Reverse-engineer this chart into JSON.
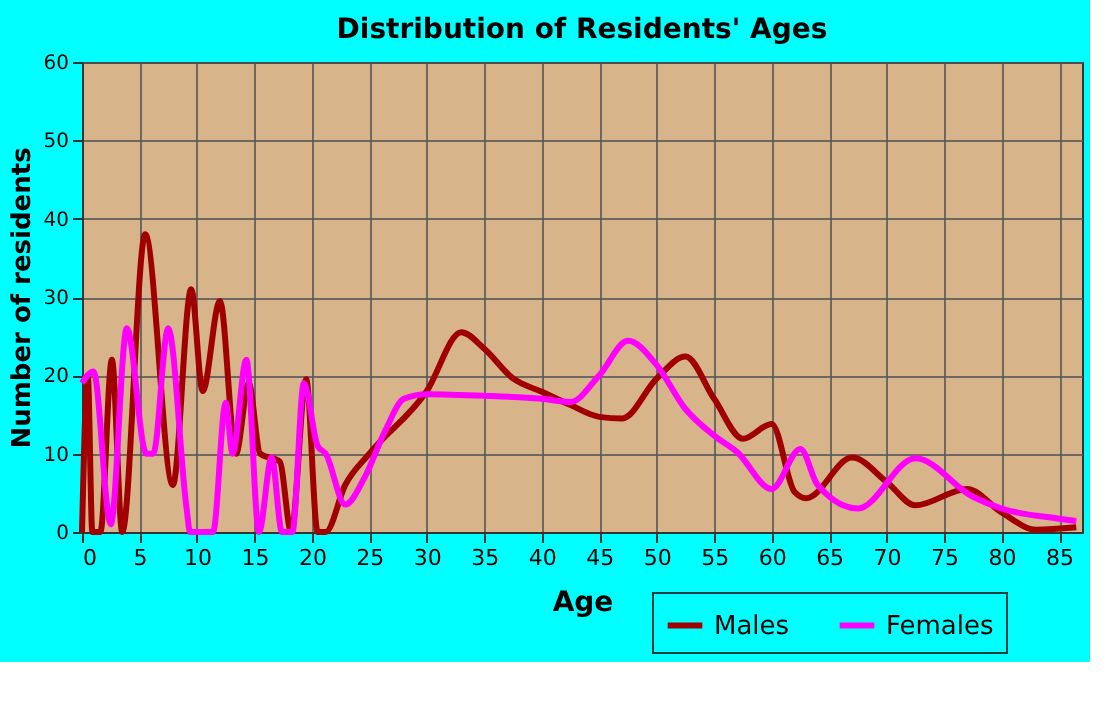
{
  "chart_data": {
    "type": "line",
    "title": "Distribution of Residents' Ages",
    "xlabel": "Age",
    "ylabel": "Number of residents",
    "xlim": [
      0,
      87
    ],
    "xticks": [
      0,
      5,
      10,
      15,
      20,
      25,
      30,
      35,
      40,
      45,
      50,
      55,
      60,
      65,
      70,
      75,
      80,
      85
    ],
    "ylim": [
      0,
      60
    ],
    "yticks": [
      0,
      10,
      20,
      30,
      40,
      50,
      60
    ],
    "grid": true,
    "legend": "bottom right",
    "line_style": "solid",
    "marker": "none",
    "series": [
      {
        "name": "Males",
        "color": "#a00000",
        "x": [
          0,
          0.5,
          0.9,
          1.6,
          2.6,
          3.5,
          5.5,
          7.9,
          9.5,
          10.5,
          12,
          13.4,
          14.5,
          15.5,
          17.2,
          18.2,
          19.5,
          20.5,
          21.2,
          22.9,
          25,
          30,
          33,
          35,
          37.5,
          40,
          42.5,
          45,
          47,
          50,
          52.5,
          55,
          57.5,
          60,
          62,
          63,
          67,
          70,
          72.5,
          77,
          80,
          83,
          86.5
        ],
        "values": [
          0,
          20,
          0,
          0,
          22,
          0,
          38,
          6,
          31,
          18,
          29.5,
          10,
          19,
          10,
          9,
          0,
          19.5,
          0,
          0,
          6,
          10,
          18,
          25.5,
          23.4,
          19.6,
          17.9,
          16.2,
          14.7,
          14.5,
          19.6,
          22.4,
          17,
          11.9,
          13.8,
          5.1,
          4.3,
          9.5,
          6.4,
          3.4,
          5.5,
          2.5,
          0.3,
          0.6
        ]
      },
      {
        "name": "Females",
        "color": "#ff00ff",
        "x": [
          0,
          1,
          2.5,
          3.9,
          5.6,
          6.2,
          7.5,
          9.1,
          9.4,
          11.4,
          12.5,
          13.1,
          14.3,
          15.4,
          16.5,
          17.4,
          18.3,
          19.3,
          20.5,
          21.2,
          22.9,
          24.6,
          26.4,
          28,
          30,
          35,
          40,
          42.5,
          45,
          47.5,
          50,
          52.5,
          55,
          57,
          60,
          62.5,
          64,
          67.5,
          72.5,
          77.5,
          80,
          85,
          86.5
        ],
        "values": [
          19,
          20.5,
          1,
          26,
          10,
          10,
          26,
          3,
          0,
          0,
          16.5,
          10,
          22,
          0,
          9.5,
          0,
          0,
          19,
          11,
          10,
          3.5,
          7,
          13,
          17,
          17.6,
          17.4,
          17,
          16.6,
          20,
          24.4,
          21.3,
          15.7,
          12.3,
          10.2,
          5.5,
          10.6,
          6,
          3,
          9.4,
          4.5,
          3,
          1.7,
          1.4
        ]
      }
    ]
  }
}
